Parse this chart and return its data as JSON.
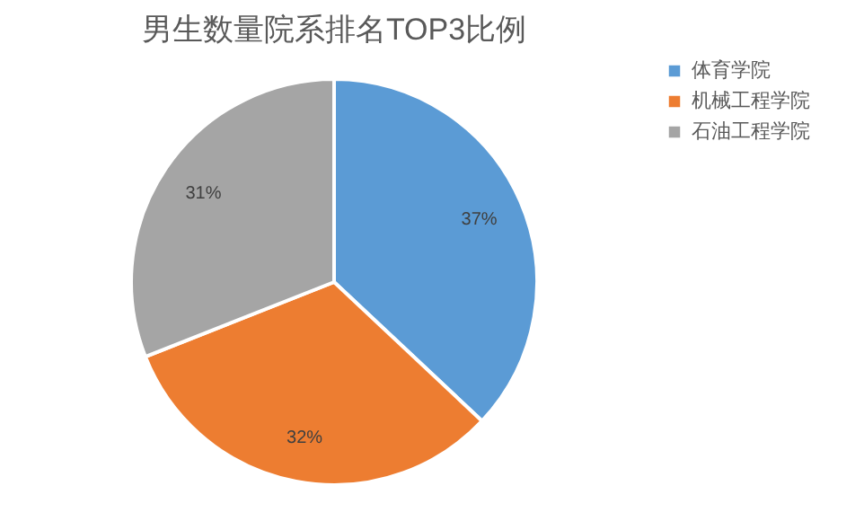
{
  "chart_data": {
    "type": "pie",
    "title": "男生数量院系排名TOP3比例",
    "categories": [
      "体育学院",
      "机械工程学院",
      "石油工程学院"
    ],
    "values": [
      37,
      32,
      31
    ],
    "colors": [
      "#5b9bd5",
      "#ed7d31",
      "#a5a5a5"
    ],
    "value_labels": [
      "37%",
      "32%",
      "31%"
    ],
    "legend": "right"
  }
}
